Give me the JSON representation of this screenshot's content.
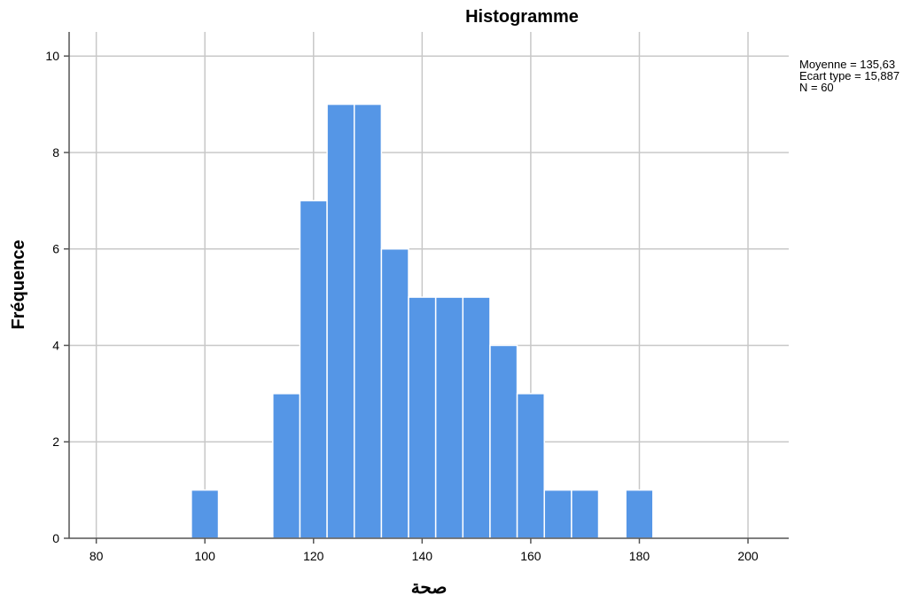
{
  "chart_data": {
    "type": "bar",
    "title": "Histogramme",
    "xlabel": "صحة",
    "ylabel": "Fréquence",
    "xlim": [
      75,
      207.5
    ],
    "ylim": [
      0,
      10.5
    ],
    "x_ticks": [
      "80",
      "100",
      "120",
      "140",
      "160",
      "180",
      "200"
    ],
    "x_tick_values": [
      80,
      100,
      120,
      140,
      160,
      180,
      200
    ],
    "y_ticks": [
      "0",
      "2",
      "4",
      "6",
      "8",
      "10"
    ],
    "y_tick_values": [
      0,
      2,
      4,
      6,
      8,
      10
    ],
    "grid": true,
    "bin_width": 5,
    "bins": [
      {
        "start": 77.5,
        "count": 0
      },
      {
        "start": 82.5,
        "count": 0
      },
      {
        "start": 87.5,
        "count": 0
      },
      {
        "start": 92.5,
        "count": 0
      },
      {
        "start": 97.5,
        "count": 1
      },
      {
        "start": 102.5,
        "count": 0
      },
      {
        "start": 107.5,
        "count": 0
      },
      {
        "start": 112.5,
        "count": 3
      },
      {
        "start": 117.5,
        "count": 7
      },
      {
        "start": 122.5,
        "count": 9
      },
      {
        "start": 127.5,
        "count": 9
      },
      {
        "start": 132.5,
        "count": 6
      },
      {
        "start": 137.5,
        "count": 5
      },
      {
        "start": 142.5,
        "count": 5
      },
      {
        "start": 147.5,
        "count": 5
      },
      {
        "start": 152.5,
        "count": 4
      },
      {
        "start": 157.5,
        "count": 3
      },
      {
        "start": 162.5,
        "count": 1
      },
      {
        "start": 167.5,
        "count": 1
      },
      {
        "start": 172.5,
        "count": 0
      },
      {
        "start": 177.5,
        "count": 1
      },
      {
        "start": 182.5,
        "count": 0
      },
      {
        "start": 187.5,
        "count": 0
      },
      {
        "start": 192.5,
        "count": 0
      },
      {
        "start": 197.5,
        "count": 0
      }
    ],
    "bar_color": "#5596e6",
    "stats": {
      "mean_label": "Moyenne = 135,63",
      "sd_label": "Ecart type = 15,887",
      "n_label": "N = 60"
    }
  }
}
